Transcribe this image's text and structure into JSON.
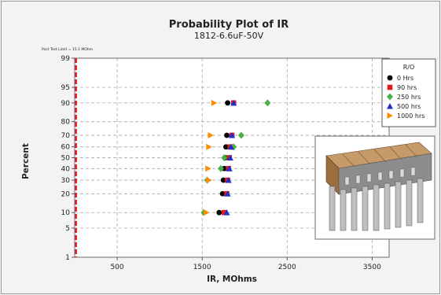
{
  "chart_data": {
    "type": "scatter",
    "title": "Probability Plot of IR",
    "subtitle": "1812-6.6uF-50V",
    "xlabel": "IR, MOhms",
    "ylabel": "Percent",
    "xlim": [
      0,
      3700
    ],
    "x_ticks": [
      500,
      1500,
      2500,
      3500
    ],
    "y_scale": "normal-probability",
    "y_ticks": [
      1,
      5,
      10,
      20,
      30,
      40,
      50,
      60,
      70,
      80,
      90,
      95,
      99
    ],
    "grid": true,
    "reference_line": {
      "x": 15.1,
      "label": "Post Test Limit = 15.1 MOhm",
      "color": "#e31a1c"
    },
    "legend": {
      "title": "R/O",
      "position": "right"
    },
    "series": [
      {
        "name": "0 Hrs",
        "color": "#000000",
        "marker": "circle",
        "points": [
          [
            1700,
            10
          ],
          [
            1740,
            20
          ],
          [
            1750,
            30
          ],
          [
            1760,
            40
          ],
          [
            1770,
            50
          ],
          [
            1780,
            60
          ],
          [
            1790,
            70
          ],
          [
            1800,
            90
          ]
        ]
      },
      {
        "name": "90 hrs",
        "color": "#e31a1c",
        "marker": "square",
        "points": [
          [
            1760,
            10
          ],
          [
            1790,
            20
          ],
          [
            1800,
            30
          ],
          [
            1810,
            40
          ],
          [
            1820,
            50
          ],
          [
            1830,
            60
          ],
          [
            1850,
            70
          ],
          [
            1870,
            90
          ]
        ]
      },
      {
        "name": "250 hrs",
        "color": "#4daf4a",
        "marker": "diamond",
        "points": [
          [
            1520,
            10
          ],
          [
            1560,
            30
          ],
          [
            1720,
            40
          ],
          [
            1760,
            50
          ],
          [
            1870,
            60
          ],
          [
            1960,
            70
          ],
          [
            2270,
            90
          ]
        ]
      },
      {
        "name": "500 hrs",
        "color": "#2030c8",
        "marker": "triangle",
        "points": [
          [
            1790,
            10
          ],
          [
            1800,
            20
          ],
          [
            1810,
            30
          ],
          [
            1820,
            40
          ],
          [
            1830,
            50
          ],
          [
            1840,
            60
          ],
          [
            1850,
            70
          ],
          [
            1870,
            90
          ]
        ]
      },
      {
        "name": "1000 hrs",
        "color": "#ff8c00",
        "marker": "triangle-right",
        "points": [
          [
            1550,
            10
          ],
          [
            1580,
            30
          ],
          [
            1570,
            40
          ],
          [
            1580,
            60
          ],
          [
            1600,
            70
          ],
          [
            1640,
            90
          ]
        ]
      }
    ]
  },
  "image": {
    "icon": "multilayer-capacitor-array-icon"
  }
}
